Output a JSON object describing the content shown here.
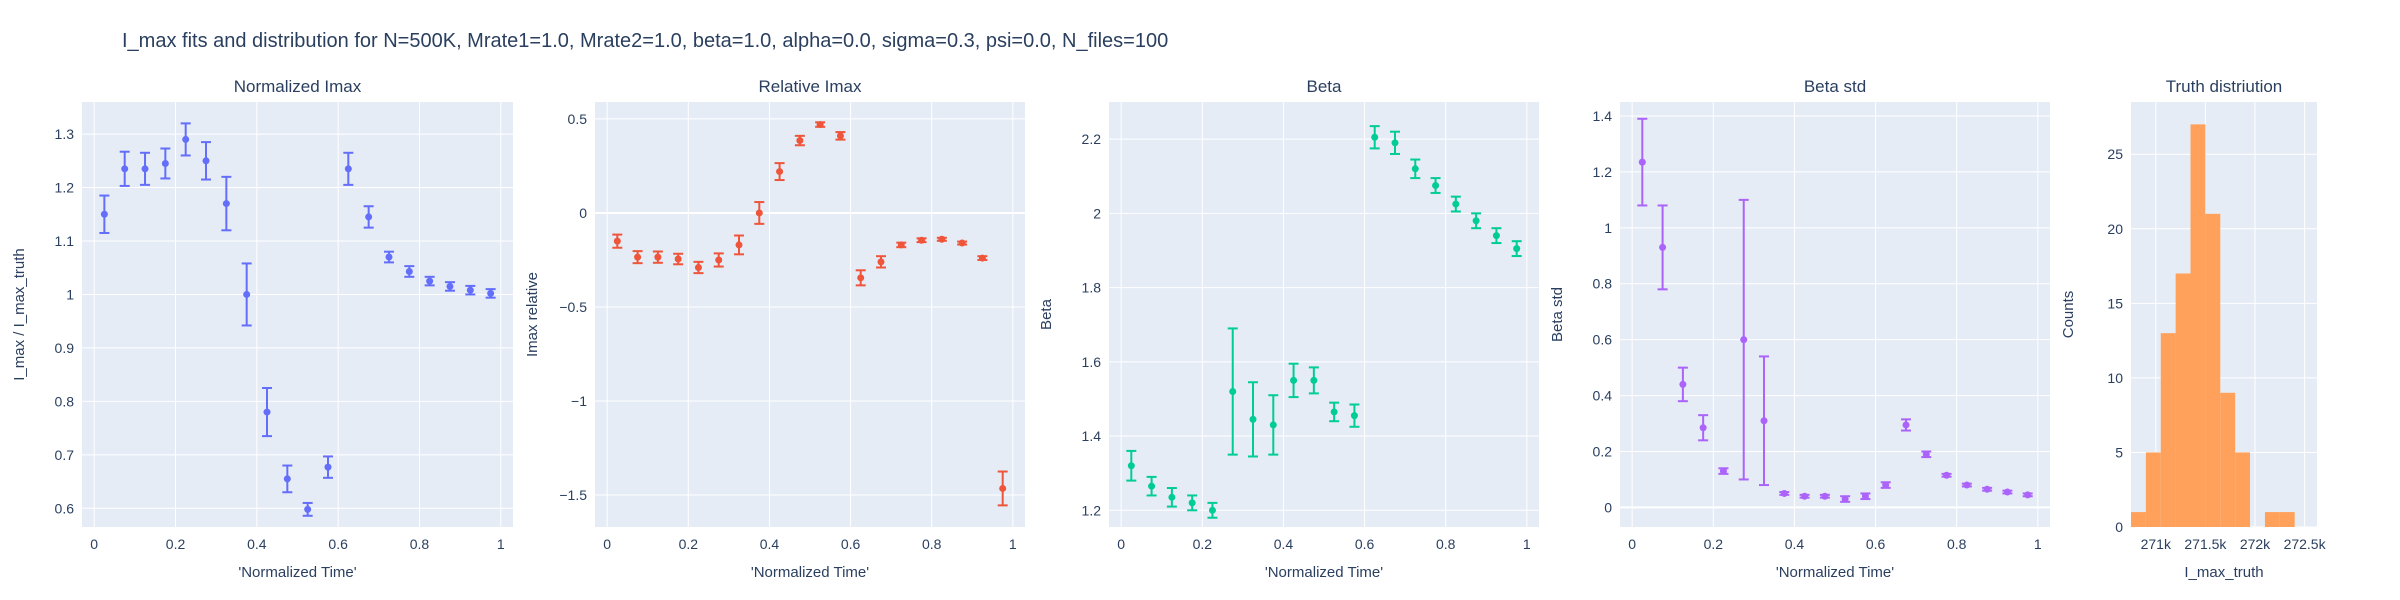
{
  "title": "I_max fits and distribution for N=500K, Mrate1=1.0, Mrate2=1.0, beta=1.0, alpha=0.0, sigma=0.3,  psi=0.0, N_files=100",
  "colors": {
    "blue": "#636efa",
    "red": "#ef553b",
    "green": "#00cc96",
    "purple": "#ab63fa",
    "orange": "#ffa15a"
  },
  "chart_data": [
    {
      "type": "scatter",
      "title": "Normalized Imax",
      "xlabel": "'Normalized Time'",
      "ylabel": "I_max / I_max_truth",
      "xlim": [
        -0.03,
        1.03
      ],
      "ylim": [
        0.565,
        1.36
      ],
      "xticks": [
        0,
        0.2,
        0.4,
        0.6,
        0.8,
        1
      ],
      "xtick_labels": [
        "0",
        "0.2",
        "0.4",
        "0.6",
        "0.8",
        "1"
      ],
      "yticks": [
        0.6,
        0.7,
        0.8,
        0.9,
        1.0,
        1.1,
        1.2,
        1.3
      ],
      "ytick_labels": [
        "0.6",
        "0.7",
        "0.8",
        "0.9",
        "1",
        "1.1",
        "1.2",
        "1.3"
      ],
      "color": "#636efa",
      "x": [
        0.025,
        0.075,
        0.125,
        0.175,
        0.225,
        0.275,
        0.325,
        0.375,
        0.425,
        0.475,
        0.525,
        0.575,
        0.625,
        0.675,
        0.725,
        0.775,
        0.825,
        0.875,
        0.925,
        0.975
      ],
      "y": [
        1.15,
        1.235,
        1.235,
        1.245,
        1.29,
        1.25,
        1.17,
        1.0,
        0.78,
        0.655,
        0.598,
        0.677,
        1.235,
        1.145,
        1.07,
        1.043,
        1.025,
        1.015,
        1.008,
        1.002
      ],
      "err": [
        0.035,
        0.032,
        0.03,
        0.028,
        0.03,
        0.035,
        0.05,
        0.058,
        0.045,
        0.025,
        0.012,
        0.02,
        0.03,
        0.02,
        0.01,
        0.01,
        0.008,
        0.008,
        0.008,
        0.008
      ]
    },
    {
      "type": "scatter",
      "title": "Relative Imax",
      "xlabel": "'Normalized Time'",
      "ylabel": "Imax relative",
      "xlim": [
        -0.03,
        1.03
      ],
      "ylim": [
        -1.67,
        0.59
      ],
      "xticks": [
        0,
        0.2,
        0.4,
        0.6,
        0.8,
        1
      ],
      "xtick_labels": [
        "0",
        "0.2",
        "0.4",
        "0.6",
        "0.8",
        "1"
      ],
      "yticks": [
        -1.5,
        -1,
        -0.5,
        0,
        0.5
      ],
      "ytick_labels": [
        "−1.5",
        "−1",
        "−0.5",
        "0",
        "0.5"
      ],
      "zero_line": 0,
      "color": "#ef553b",
      "x": [
        0.025,
        0.075,
        0.125,
        0.175,
        0.225,
        0.275,
        0.325,
        0.375,
        0.425,
        0.475,
        0.525,
        0.575,
        0.625,
        0.675,
        0.725,
        0.775,
        0.825,
        0.875,
        0.925,
        0.975
      ],
      "y": [
        -0.15,
        -0.235,
        -0.235,
        -0.245,
        -0.29,
        -0.25,
        -0.17,
        0.0,
        0.22,
        0.385,
        0.47,
        0.41,
        -0.345,
        -0.26,
        -0.17,
        -0.145,
        -0.14,
        -0.16,
        -0.24,
        -1.465
      ],
      "err": [
        0.035,
        0.032,
        0.03,
        0.028,
        0.03,
        0.035,
        0.05,
        0.058,
        0.045,
        0.025,
        0.012,
        0.02,
        0.04,
        0.03,
        0.012,
        0.01,
        0.008,
        0.008,
        0.01,
        0.09
      ]
    },
    {
      "type": "scatter",
      "title": "Beta",
      "xlabel": "'Normalized Time'",
      "ylabel": "Beta",
      "xlim": [
        -0.03,
        1.03
      ],
      "ylim": [
        1.155,
        2.3
      ],
      "xticks": [
        0,
        0.2,
        0.4,
        0.6,
        0.8,
        1
      ],
      "xtick_labels": [
        "0",
        "0.2",
        "0.4",
        "0.6",
        "0.8",
        "1"
      ],
      "yticks": [
        1.2,
        1.4,
        1.6,
        1.8,
        2.0,
        2.2
      ],
      "ytick_labels": [
        "1.2",
        "1.4",
        "1.6",
        "1.8",
        "2",
        "2.2"
      ],
      "color": "#00cc96",
      "x": [
        0.025,
        0.075,
        0.125,
        0.175,
        0.225,
        0.275,
        0.325,
        0.375,
        0.425,
        0.475,
        0.525,
        0.575,
        0.625,
        0.675,
        0.725,
        0.775,
        0.825,
        0.875,
        0.925,
        0.975
      ],
      "y": [
        1.32,
        1.265,
        1.235,
        1.22,
        1.2,
        1.52,
        1.445,
        1.43,
        1.55,
        1.55,
        1.465,
        1.455,
        2.205,
        2.19,
        2.12,
        2.075,
        2.025,
        1.98,
        1.94,
        1.905
      ],
      "err": [
        0.04,
        0.025,
        0.025,
        0.02,
        0.02,
        0.17,
        0.1,
        0.08,
        0.045,
        0.035,
        0.025,
        0.03,
        0.03,
        0.03,
        0.025,
        0.02,
        0.02,
        0.02,
        0.02,
        0.02
      ]
    },
    {
      "type": "scatter",
      "title": "Beta std",
      "xlabel": "'Normalized Time'",
      "ylabel": "Beta std",
      "xlim": [
        -0.03,
        1.03
      ],
      "ylim": [
        -0.07,
        1.45
      ],
      "xticks": [
        0,
        0.2,
        0.4,
        0.6,
        0.8,
        1
      ],
      "xtick_labels": [
        "0",
        "0.2",
        "0.4",
        "0.6",
        "0.8",
        "1"
      ],
      "yticks": [
        0,
        0.2,
        0.4,
        0.6,
        0.8,
        1.0,
        1.2,
        1.4
      ],
      "ytick_labels": [
        "0",
        "0.2",
        "0.4",
        "0.6",
        "0.8",
        "1",
        "1.2",
        "1.4"
      ],
      "zero_line": 0,
      "color": "#ab63fa",
      "x": [
        0.025,
        0.075,
        0.125,
        0.175,
        0.225,
        0.275,
        0.325,
        0.375,
        0.425,
        0.475,
        0.525,
        0.575,
        0.625,
        0.675,
        0.725,
        0.775,
        0.825,
        0.875,
        0.925,
        0.975
      ],
      "y": [
        1.235,
        0.93,
        0.44,
        0.285,
        0.13,
        0.6,
        0.31,
        0.05,
        0.04,
        0.04,
        0.03,
        0.04,
        0.08,
        0.295,
        0.19,
        0.115,
        0.08,
        0.065,
        0.055,
        0.045
      ],
      "err": [
        0.155,
        0.15,
        0.06,
        0.045,
        0.01,
        0.5,
        0.23,
        0.005,
        0.005,
        0.005,
        0.01,
        0.01,
        0.01,
        0.02,
        0.01,
        0.005,
        0.005,
        0.005,
        0.005,
        0.005
      ]
    },
    {
      "type": "bar",
      "title": "Truth distriution",
      "xlabel": "I_max_truth",
      "ylabel": "Counts",
      "xlim": [
        270750,
        272625
      ],
      "ylim": [
        0,
        28.5
      ],
      "xticks": [
        271000,
        271500,
        272000,
        272500
      ],
      "xtick_labels": [
        "271k",
        "271.5k",
        "272k",
        "272.5k"
      ],
      "yticks": [
        0,
        5,
        10,
        15,
        20,
        25
      ],
      "ytick_labels": [
        "0",
        "5",
        "10",
        "15",
        "20",
        "25"
      ],
      "color": "#ffa15a",
      "bin_edges": [
        270750,
        270900,
        271050,
        271200,
        271350,
        271500,
        271650,
        271800,
        271950,
        272100,
        272250,
        272400,
        272625
      ],
      "counts": [
        1,
        5,
        13,
        17,
        27,
        21,
        9,
        5,
        0,
        1,
        1,
        0
      ]
    }
  ]
}
